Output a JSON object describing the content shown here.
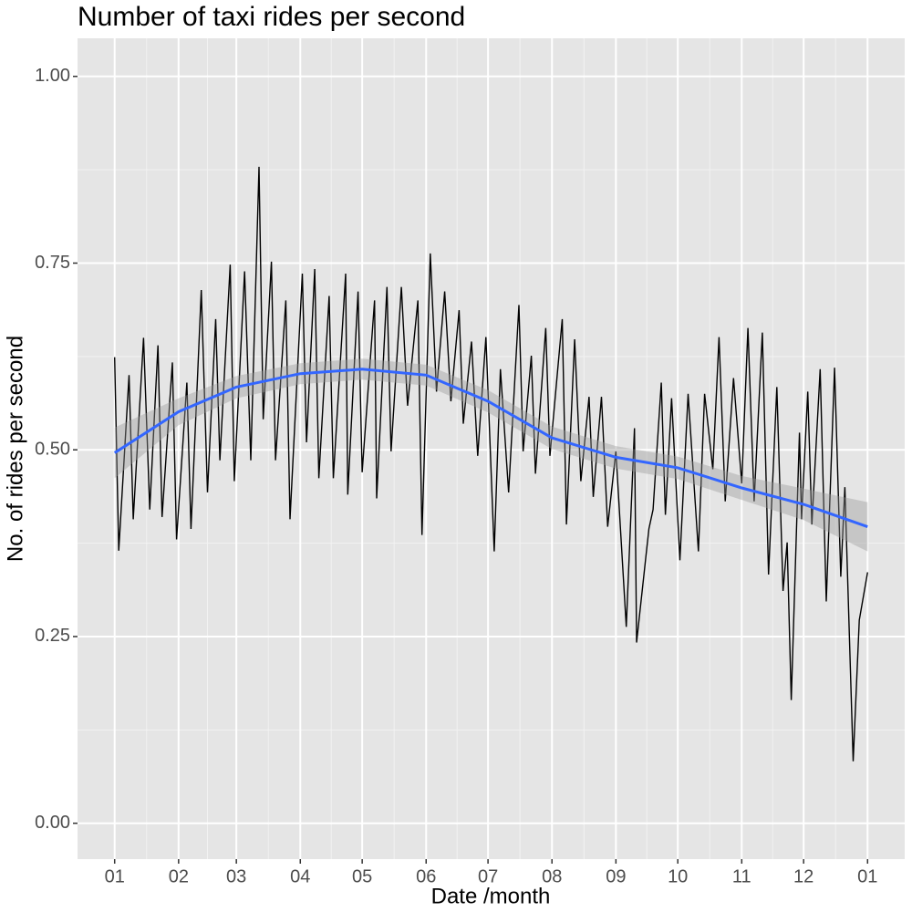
{
  "chart_data": {
    "type": "line",
    "title": "Number of taxi rides per second",
    "x_label": "Date /month",
    "y_label": "No. of rides per second",
    "x": [
      0,
      2,
      7,
      9,
      14,
      17,
      21,
      23,
      28,
      30,
      35,
      37,
      42,
      45,
      49,
      51,
      56,
      58,
      63,
      66,
      70,
      72,
      76,
      78,
      83,
      85,
      91,
      93,
      97,
      99,
      104,
      106,
      112,
      113,
      118,
      120,
      126,
      127,
      132,
      134,
      139,
      142,
      147,
      149,
      153,
      156,
      160,
      163,
      167,
      169,
      173,
      176,
      180,
      184,
      187,
      191,
      196,
      198,
      202,
      204,
      209,
      211,
      217,
      219,
      223,
      226,
      230,
      232,
      236,
      239,
      243,
      248,
      252,
      253,
      259,
      261,
      265,
      267,
      270,
      274,
      278,
      283,
      286,
      290,
      293,
      296,
      300,
      304,
      307,
      310,
      314,
      317,
      321,
      324,
      326,
      328,
      332,
      333,
      336,
      338,
      342,
      345,
      349,
      352,
      354,
      358,
      361,
      365
    ],
    "values": [
      0.624,
      0.365,
      0.6,
      0.407,
      0.65,
      0.42,
      0.64,
      0.41,
      0.617,
      0.38,
      0.59,
      0.394,
      0.714,
      0.443,
      0.675,
      0.486,
      0.748,
      0.458,
      0.739,
      0.486,
      0.879,
      0.541,
      0.752,
      0.486,
      0.7,
      0.407,
      0.736,
      0.51,
      0.742,
      0.462,
      0.706,
      0.462,
      0.736,
      0.44,
      0.712,
      0.47,
      0.7,
      0.435,
      0.718,
      0.498,
      0.718,
      0.559,
      0.7,
      0.386,
      0.763,
      0.578,
      0.712,
      0.565,
      0.687,
      0.535,
      0.645,
      0.492,
      0.651,
      0.364,
      0.608,
      0.443,
      0.694,
      0.498,
      0.626,
      0.468,
      0.663,
      0.492,
      0.675,
      0.4,
      0.648,
      0.458,
      0.571,
      0.437,
      0.571,
      0.397,
      0.498,
      0.263,
      0.529,
      0.242,
      0.394,
      0.42,
      0.59,
      0.413,
      0.569,
      0.352,
      0.575,
      0.364,
      0.575,
      0.474,
      0.651,
      0.431,
      0.596,
      0.455,
      0.663,
      0.431,
      0.657,
      0.333,
      0.584,
      0.311,
      0.376,
      0.165,
      0.523,
      0.407,
      0.578,
      0.4,
      0.608,
      0.297,
      0.61,
      0.33,
      0.45,
      0.083,
      0.272,
      0.336
    ],
    "color": "#000000",
    "smooth": {
      "x": [
        0,
        31,
        59,
        90,
        120,
        151,
        181,
        212,
        243,
        273,
        304,
        334,
        365
      ],
      "values": [
        0.496,
        0.551,
        0.584,
        0.602,
        0.608,
        0.6,
        0.565,
        0.516,
        0.49,
        0.476,
        0.449,
        0.427,
        0.397
      ],
      "lower": [
        0.462,
        0.533,
        0.569,
        0.588,
        0.594,
        0.586,
        0.55,
        0.501,
        0.475,
        0.461,
        0.433,
        0.406,
        0.364
      ],
      "upper": [
        0.53,
        0.569,
        0.599,
        0.616,
        0.622,
        0.614,
        0.58,
        0.531,
        0.505,
        0.491,
        0.465,
        0.448,
        0.43
      ],
      "color": "#3366ff",
      "band_color": "#999999"
    },
    "xlim": [
      -18,
      383
    ],
    "ylim": [
      -0.048,
      1.051
    ],
    "xticks": [
      {
        "value": 0,
        "label": "01"
      },
      {
        "value": 31,
        "label": "02"
      },
      {
        "value": 59,
        "label": "03"
      },
      {
        "value": 90,
        "label": "04"
      },
      {
        "value": 120,
        "label": "05"
      },
      {
        "value": 151,
        "label": "06"
      },
      {
        "value": 181,
        "label": "07"
      },
      {
        "value": 212,
        "label": "08"
      },
      {
        "value": 243,
        "label": "09"
      },
      {
        "value": 273,
        "label": "10"
      },
      {
        "value": 304,
        "label": "11"
      },
      {
        "value": 334,
        "label": "12"
      },
      {
        "value": 365,
        "label": "01"
      }
    ],
    "yticks": [
      {
        "value": 0,
        "label": "0.00"
      },
      {
        "value": 0.25,
        "label": "0.25"
      },
      {
        "value": 0.5,
        "label": "0.50"
      },
      {
        "value": 0.75,
        "label": "0.75"
      },
      {
        "value": 1,
        "label": "1.00"
      }
    ],
    "grid": true
  }
}
